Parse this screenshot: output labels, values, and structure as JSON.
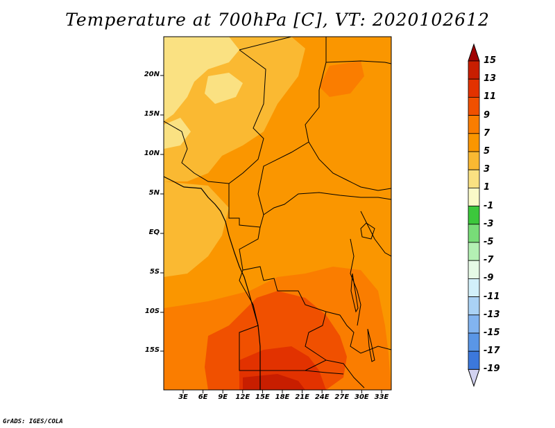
{
  "title": "Temperature at 700hPa [C], VT: 2020102612",
  "credit": "GrADS: IGES/COLA",
  "map": {
    "variable": "Temperature",
    "level": "700hPa",
    "units": "C",
    "valid_time": "2020102612",
    "lat_ticks": [
      "20N",
      "15N",
      "10N",
      "5N",
      "EQ",
      "5S",
      "10S",
      "15S"
    ],
    "lon_ticks": [
      "3E",
      "6E",
      "9E",
      "12E",
      "15E",
      "18E",
      "21E",
      "24E",
      "27E",
      "30E",
      "33E"
    ]
  },
  "colorbar": {
    "labels": [
      "15",
      "13",
      "11",
      "9",
      "7",
      "5",
      "3",
      "1",
      "-1",
      "-3",
      "-5",
      "-7",
      "-9",
      "-11",
      "-13",
      "-15",
      "-17",
      "-19"
    ],
    "colors": [
      "#ffd7a0",
      "#a00000",
      "#c81e00",
      "#e23200",
      "#f05000",
      "#fa7d00",
      "#fa9600",
      "#fab932",
      "#fae182",
      "#fafac8",
      "#3cc83c",
      "#78dc78",
      "#b4f0b4",
      "#e6fae6",
      "#d2f0fa",
      "#aad2f5",
      "#82b4f0",
      "#5a96e6",
      "#3c78dc",
      "#1e5ad2",
      "#1440b4",
      "#0a2896",
      "#000080",
      "#d2d2f0"
    ]
  },
  "colors": {
    "coast": "#000000",
    "background": "#ffffff"
  }
}
